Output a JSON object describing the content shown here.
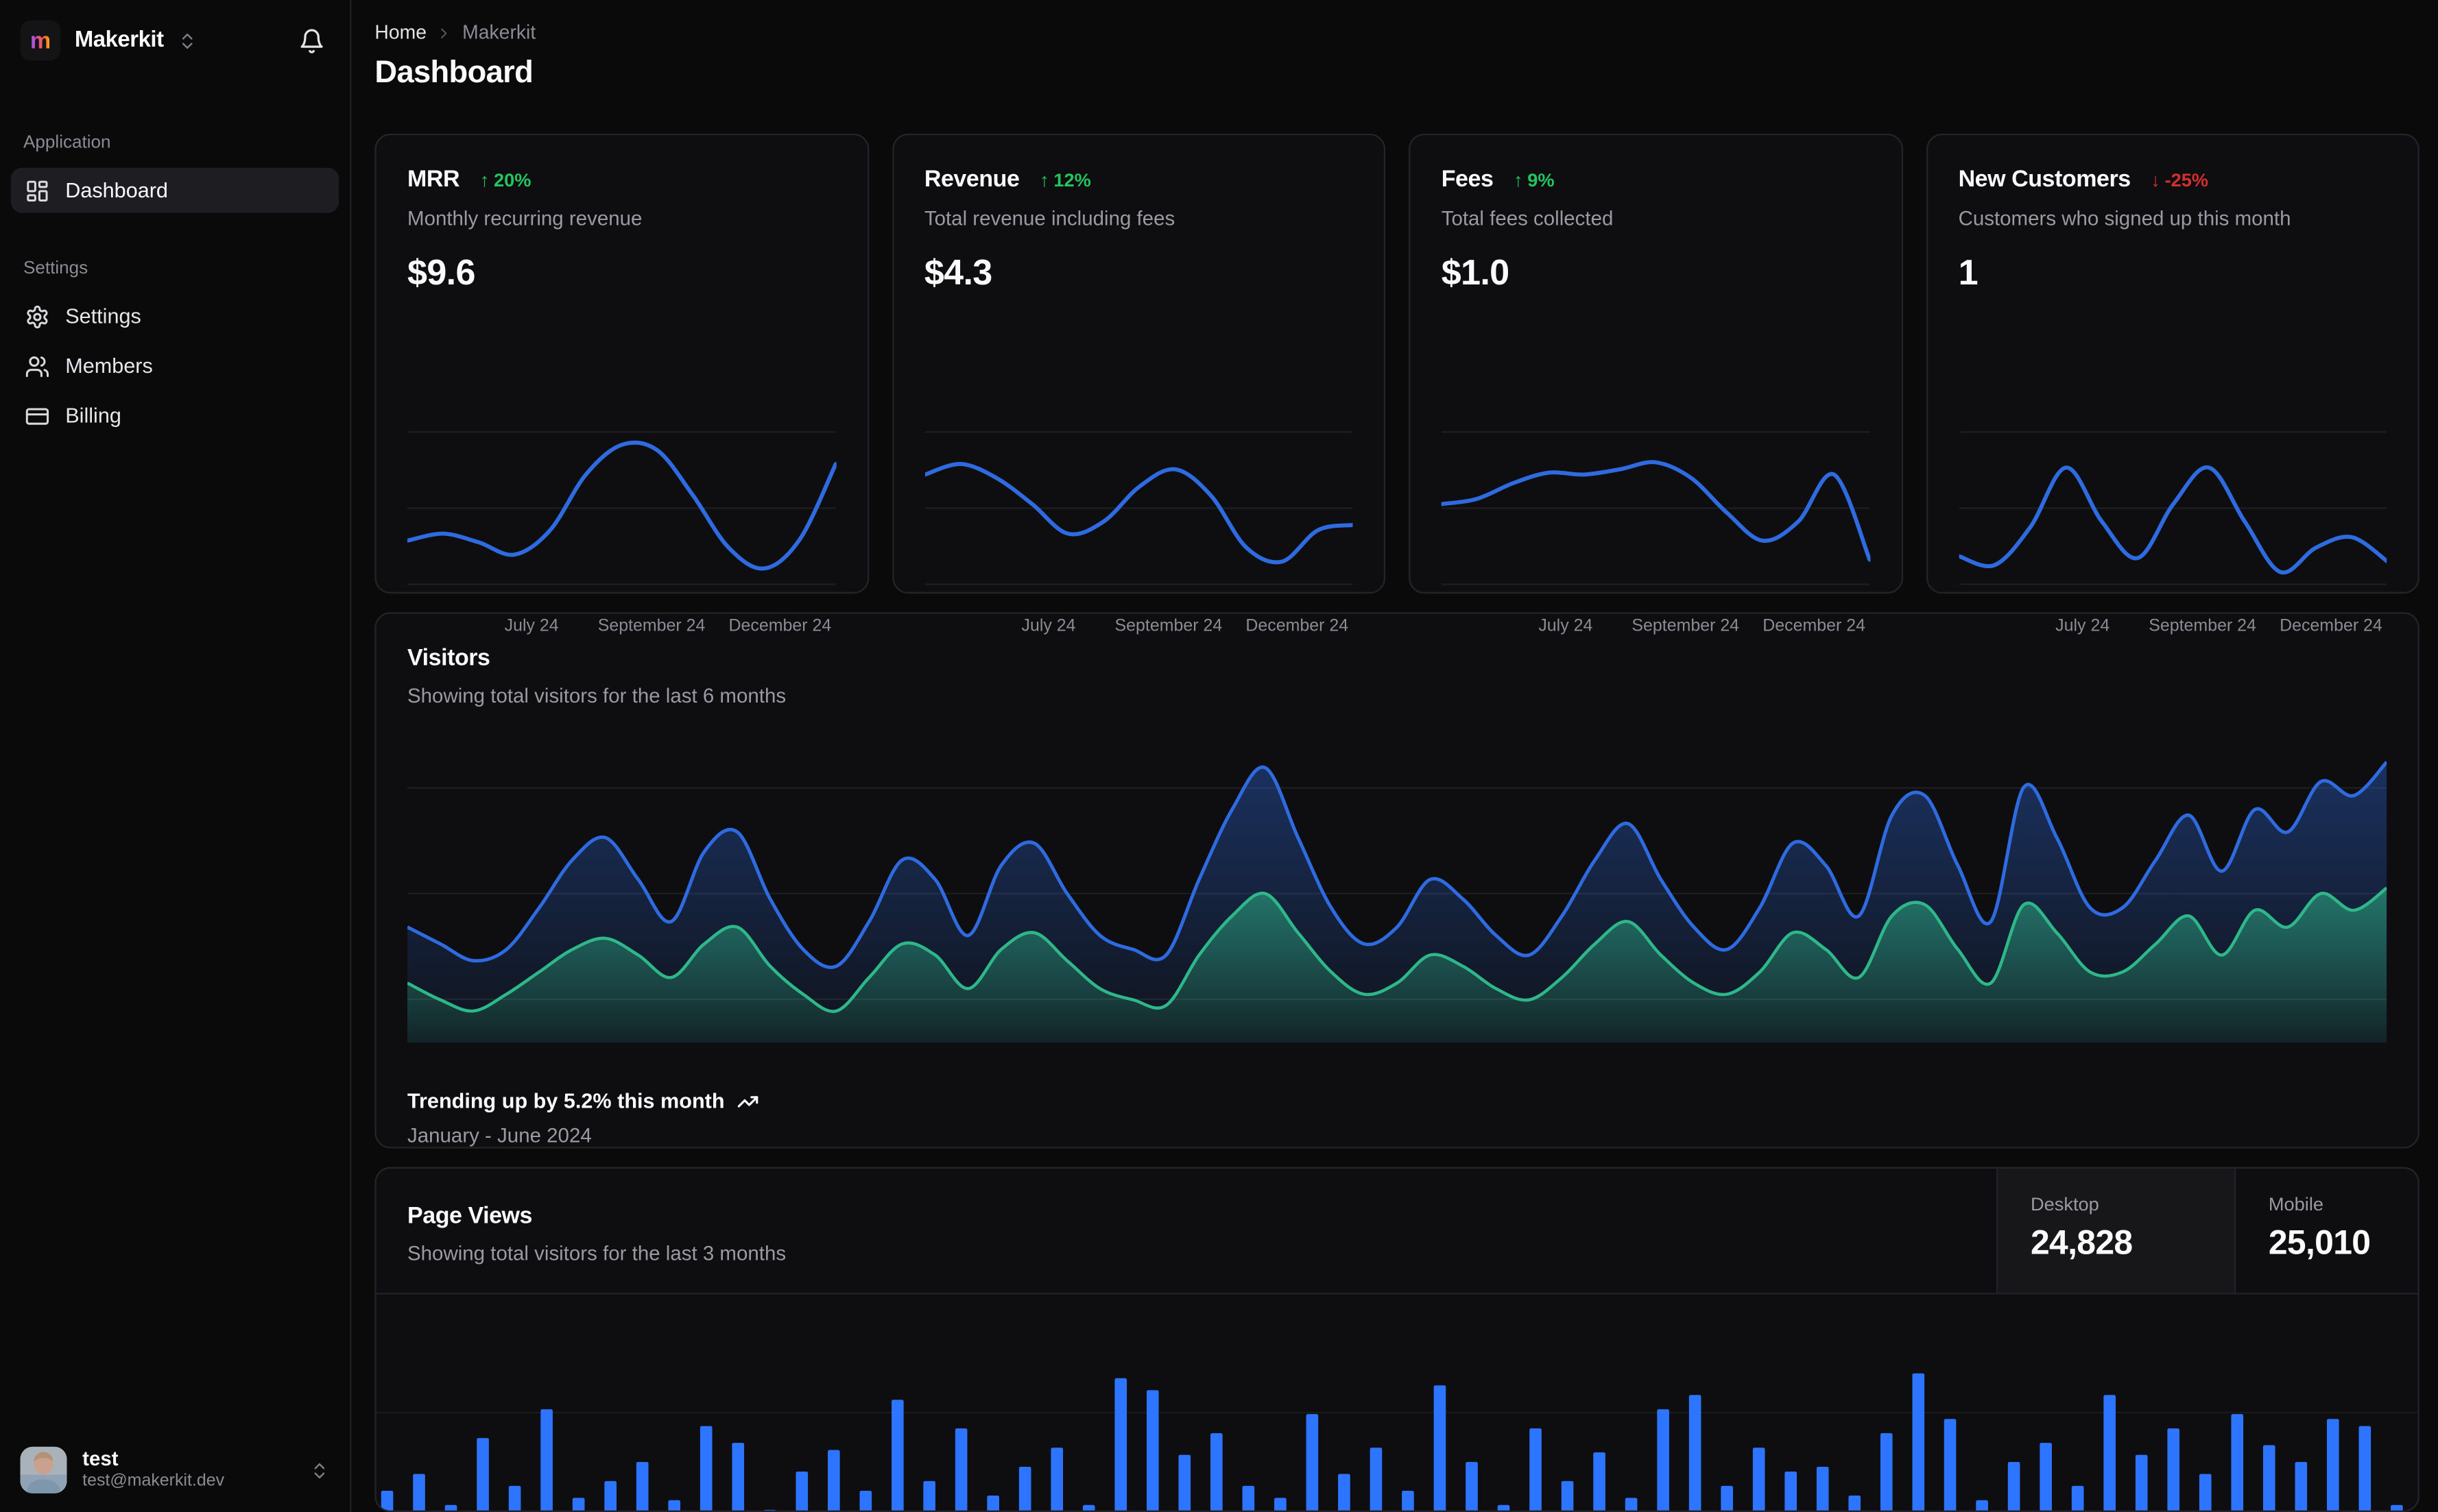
{
  "colors": {
    "page_bg": "#0a0a0b",
    "card_bg": "#0e0e10",
    "card_border": "#242428",
    "muted_text": "#9a9aa3",
    "accent_blue": "#2e6be0",
    "accent_green": "#2eb88a",
    "bar_blue": "#2d74ff",
    "badge_up": "#22c55e",
    "badge_down": "#d32f2f",
    "logo_gradient": [
      "#8b5cf6",
      "#ec4899",
      "#f97316",
      "#fbbf24"
    ]
  },
  "icons": {
    "workspace_selector": "chevrons-up-down",
    "notifications": "bell",
    "dashboard": "layout-dashboard",
    "settings": "gear",
    "members": "users",
    "billing": "credit-card",
    "breadcrumb_sep": "chevron-right",
    "trend": "trending-up",
    "badge_up_arrow": "↑",
    "badge_down_arrow": "↓"
  },
  "sidebar": {
    "workspace": "Makerkit",
    "sections": [
      {
        "label": "Application",
        "items": [
          {
            "label": "Dashboard",
            "icon": "dashboard-icon",
            "active": true
          }
        ]
      },
      {
        "label": "Settings",
        "items": [
          {
            "label": "Settings",
            "icon": "settings-icon",
            "active": false
          },
          {
            "label": "Members",
            "icon": "members-icon",
            "active": false
          },
          {
            "label": "Billing",
            "icon": "billing-icon",
            "active": false
          }
        ]
      }
    ],
    "user": {
      "name": "test",
      "email": "test@makerkit.dev"
    }
  },
  "breadcrumb": {
    "home": "Home",
    "current": "Makerkit"
  },
  "page_title": "Dashboard",
  "stat_cards": [
    {
      "title": "MRR",
      "arrow": "↑",
      "badge": "20%",
      "trend": "up",
      "subtitle": "Monthly recurring revenue",
      "value": "$9.6"
    },
    {
      "title": "Revenue",
      "arrow": "↑",
      "badge": "12%",
      "trend": "up",
      "subtitle": "Total revenue including fees",
      "value": "$4.3"
    },
    {
      "title": "Fees",
      "arrow": "↑",
      "badge": "9%",
      "trend": "up",
      "subtitle": "Total fees collected",
      "value": "$1.0"
    },
    {
      "title": "New Customers",
      "arrow": "↓",
      "badge": "-25%",
      "trend": "down",
      "subtitle": "Customers who signed up this month",
      "value": "1"
    }
  ],
  "x_labels": [
    "July 24",
    "September 24",
    "December 24"
  ],
  "visitors": {
    "title": "Visitors",
    "subtitle": "Showing total visitors for the last 6 months",
    "footer_bold": "Trending up by 5.2% this month",
    "footer_sub": "January - June 2024"
  },
  "page_views": {
    "title": "Page Views",
    "subtitle": "Showing total visitors for the last 3 months",
    "tabs": [
      {
        "label": "Desktop",
        "value": "24,828",
        "active": true
      },
      {
        "label": "Mobile",
        "value": "25,010",
        "active": false
      }
    ]
  },
  "chart_data": [
    {
      "type": "line",
      "name": "mrr-sparkline",
      "x_ticks": [
        "July 24",
        "September 24",
        "December 24"
      ],
      "ylim": [
        0,
        100
      ],
      "grid": true,
      "color": "#2e6be0",
      "values": [
        34,
        38,
        33,
        26,
        40,
        72,
        89,
        86,
        60,
        30,
        18,
        35,
        78
      ]
    },
    {
      "type": "line",
      "name": "revenue-sparkline",
      "x_ticks": [
        "July 24",
        "September 24",
        "December 24"
      ],
      "ylim": [
        0,
        100
      ],
      "grid": true,
      "color": "#2e6be0",
      "values": [
        72,
        78,
        70,
        55,
        38,
        45,
        65,
        75,
        60,
        30,
        22,
        40,
        43
      ]
    },
    {
      "type": "line",
      "name": "fees-sparkline",
      "x_ticks": [
        "July 24",
        "September 24",
        "December 24"
      ],
      "ylim": [
        0,
        100
      ],
      "grid": true,
      "color": "#2e6be0",
      "values": [
        55,
        58,
        67,
        73,
        72,
        75,
        79,
        70,
        50,
        34,
        45,
        72,
        23
      ]
    },
    {
      "type": "line",
      "name": "new-customers-sparkline",
      "x_ticks": [
        "July 24",
        "September 24",
        "December 24"
      ],
      "ylim": [
        0,
        100
      ],
      "grid": true,
      "color": "#2e6be0",
      "values": [
        25,
        20,
        42,
        76,
        45,
        24,
        55,
        76,
        45,
        16,
        30,
        36,
        22
      ]
    },
    {
      "type": "area",
      "name": "visitors-area",
      "x_range": "January - June 2024",
      "ylim": [
        0,
        100
      ],
      "grid": true,
      "legend": "none",
      "series": [
        {
          "name": "series-blue",
          "color": "#2e6be0",
          "values": [
            38,
            32,
            26,
            30,
            45,
            62,
            70,
            55,
            40,
            65,
            72,
            48,
            30,
            24,
            40,
            62,
            55,
            35,
            60,
            68,
            50,
            35,
            30,
            28,
            55,
            80,
            95,
            70,
            45,
            32,
            38,
            55,
            48,
            35,
            28,
            42,
            62,
            75,
            55,
            38,
            30,
            45,
            68,
            60,
            42,
            78,
            85,
            60,
            40,
            88,
            70,
            45,
            45,
            62,
            78,
            58,
            80,
            72,
            90,
            85,
            97
          ]
        },
        {
          "name": "series-green",
          "color": "#2eb88a",
          "values": [
            18,
            12,
            8,
            14,
            22,
            30,
            34,
            28,
            20,
            32,
            38,
            24,
            14,
            8,
            20,
            32,
            28,
            16,
            30,
            36,
            26,
            16,
            12,
            10,
            28,
            42,
            50,
            36,
            22,
            14,
            18,
            28,
            24,
            16,
            12,
            20,
            32,
            40,
            28,
            18,
            14,
            22,
            36,
            30,
            20,
            42,
            46,
            30,
            18,
            46,
            36,
            22,
            22,
            32,
            42,
            28,
            44,
            38,
            50,
            44,
            52
          ]
        }
      ]
    },
    {
      "type": "bar",
      "name": "page-views-bars",
      "color": "#2d74ff",
      "ylim": [
        0,
        100
      ],
      "values": [
        18,
        25,
        12,
        40,
        20,
        52,
        15,
        22,
        30,
        14,
        45,
        38,
        10,
        26,
        35,
        18,
        56,
        22,
        44,
        16,
        28,
        36,
        12,
        65,
        60,
        33,
        42,
        20,
        15,
        50,
        25,
        36,
        18,
        62,
        30,
        12,
        44,
        22,
        34,
        15,
        52,
        58,
        20,
        36,
        26,
        28,
        16,
        42,
        67,
        48,
        14,
        30,
        38,
        20,
        58,
        33,
        44,
        25,
        50,
        37,
        30,
        48,
        45,
        12
      ]
    }
  ]
}
